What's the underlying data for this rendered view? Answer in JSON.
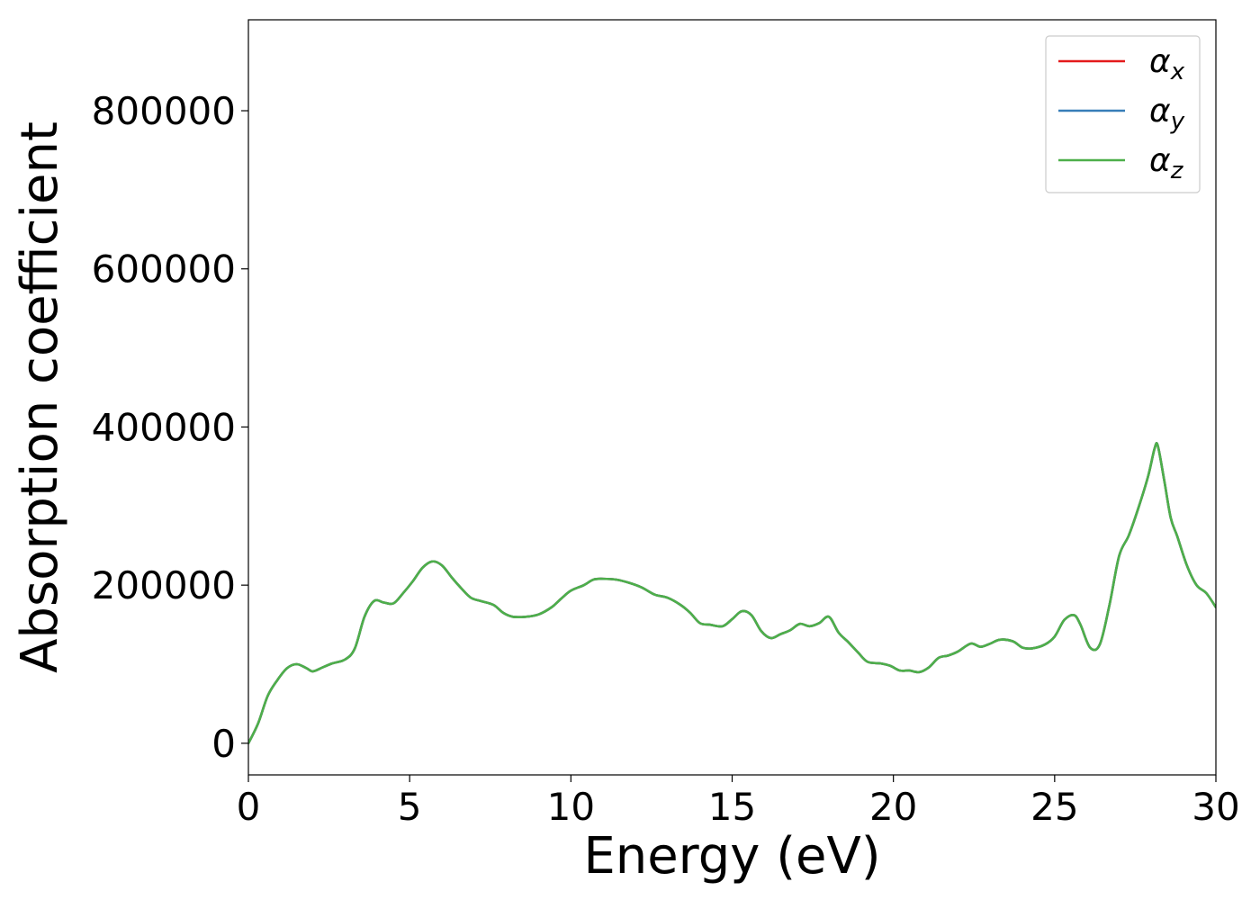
{
  "chart_data": {
    "type": "line",
    "title": "",
    "xlabel": "Energy (eV)",
    "ylabel": "Absorption coefficient",
    "xlim": [
      0,
      30
    ],
    "ylim": [
      -40000,
      915000
    ],
    "xticks": [
      0,
      5,
      10,
      15,
      20,
      25,
      30
    ],
    "yticks": [
      0,
      200000,
      400000,
      600000,
      800000
    ],
    "grid": false,
    "legend_position": "top-right",
    "series": [
      {
        "name": "αx",
        "name_base": "α",
        "name_sub": "x",
        "color": "#e41a1c",
        "x": [
          0,
          0.3,
          0.6,
          0.9,
          1.2,
          1.5,
          1.8,
          2.0,
          2.3,
          2.6,
          3.0,
          3.3,
          3.6,
          3.9,
          4.2,
          4.5,
          4.8,
          5.1,
          5.4,
          5.7,
          6.0,
          6.3,
          6.6,
          6.9,
          7.2,
          7.6,
          7.9,
          8.2,
          8.6,
          9.0,
          9.4,
          9.7,
          10.0,
          10.4,
          10.7,
          11.0,
          11.4,
          11.8,
          12.2,
          12.6,
          13.0,
          13.4,
          13.7,
          14.0,
          14.3,
          14.7,
          15.0,
          15.3,
          15.6,
          15.9,
          16.2,
          16.5,
          16.8,
          17.1,
          17.4,
          17.7,
          18.0,
          18.3,
          18.6,
          18.9,
          19.2,
          19.6,
          19.9,
          20.2,
          20.5,
          20.8,
          21.1,
          21.4,
          21.7,
          22.0,
          22.4,
          22.7,
          23.0,
          23.3,
          23.7,
          24.0,
          24.3,
          24.7,
          25.0,
          25.3,
          25.6,
          25.8,
          26.1,
          26.4,
          26.7,
          27.0,
          27.3,
          27.6,
          27.9,
          28.1,
          28.2,
          28.4,
          28.6,
          28.8,
          29.1,
          29.4,
          29.7,
          30.0
        ],
        "values": [
          0,
          25000,
          60000,
          80000,
          95000,
          100000,
          95000,
          91000,
          96000,
          101000,
          106000,
          120000,
          160000,
          180000,
          178000,
          177000,
          190000,
          205000,
          222000,
          230000,
          225000,
          210000,
          196000,
          184000,
          180000,
          175000,
          165000,
          160000,
          160000,
          163000,
          172000,
          183000,
          193000,
          200000,
          207000,
          208000,
          207000,
          203000,
          197000,
          188000,
          184000,
          175000,
          165000,
          152000,
          150000,
          148000,
          157000,
          167000,
          162000,
          142000,
          133000,
          138000,
          143000,
          151000,
          148000,
          152000,
          160000,
          140000,
          128000,
          115000,
          103000,
          101000,
          98000,
          92000,
          92000,
          90000,
          96000,
          108000,
          111000,
          116000,
          126000,
          122000,
          126000,
          131000,
          129000,
          121000,
          120000,
          125000,
          135000,
          156000,
          162000,
          150000,
          121000,
          125000,
          175000,
          237000,
          263000,
          298000,
          338000,
          373000,
          376000,
          332000,
          285000,
          262000,
          225000,
          200000,
          190000,
          172000
        ]
      },
      {
        "name": "αy",
        "name_base": "α",
        "name_sub": "y",
        "color": "#377eb8",
        "x": [
          0,
          0.3,
          0.6,
          0.9,
          1.2,
          1.5,
          1.8,
          2.0,
          2.3,
          2.6,
          3.0,
          3.3,
          3.6,
          3.9,
          4.2,
          4.5,
          4.8,
          5.1,
          5.4,
          5.7,
          6.0,
          6.3,
          6.6,
          6.9,
          7.2,
          7.6,
          7.9,
          8.2,
          8.6,
          9.0,
          9.4,
          9.7,
          10.0,
          10.4,
          10.7,
          11.0,
          11.4,
          11.8,
          12.2,
          12.6,
          13.0,
          13.4,
          13.7,
          14.0,
          14.3,
          14.7,
          15.0,
          15.3,
          15.6,
          15.9,
          16.2,
          16.5,
          16.8,
          17.1,
          17.4,
          17.7,
          18.0,
          18.3,
          18.6,
          18.9,
          19.2,
          19.6,
          19.9,
          20.2,
          20.5,
          20.8,
          21.1,
          21.4,
          21.7,
          22.0,
          22.4,
          22.7,
          23.0,
          23.3,
          23.7,
          24.0,
          24.3,
          24.7,
          25.0,
          25.3,
          25.6,
          25.8,
          26.1,
          26.4,
          26.7,
          27.0,
          27.3,
          27.6,
          27.9,
          28.1,
          28.2,
          28.4,
          28.6,
          28.8,
          29.1,
          29.4,
          29.7,
          30.0
        ],
        "values": [
          0,
          25000,
          60000,
          80000,
          95000,
          100000,
          95000,
          91000,
          96000,
          101000,
          106000,
          120000,
          160000,
          180000,
          178000,
          177000,
          190000,
          205000,
          222000,
          230000,
          225000,
          210000,
          196000,
          184000,
          180000,
          175000,
          165000,
          160000,
          160000,
          163000,
          172000,
          183000,
          193000,
          200000,
          207000,
          208000,
          207000,
          203000,
          197000,
          188000,
          184000,
          175000,
          165000,
          152000,
          150000,
          148000,
          157000,
          167000,
          162000,
          142000,
          133000,
          138000,
          143000,
          151000,
          148000,
          152000,
          160000,
          140000,
          128000,
          115000,
          103000,
          101000,
          98000,
          92000,
          92000,
          90000,
          96000,
          108000,
          111000,
          116000,
          126000,
          122000,
          126000,
          131000,
          129000,
          121000,
          120000,
          125000,
          135000,
          156000,
          162000,
          150000,
          121000,
          125000,
          175000,
          237000,
          263000,
          298000,
          338000,
          373000,
          376000,
          332000,
          285000,
          262000,
          225000,
          200000,
          190000,
          172000
        ]
      },
      {
        "name": "αz",
        "name_base": "α",
        "name_sub": "z",
        "color": "#4daf4a",
        "x": [
          0,
          0.3,
          0.6,
          0.9,
          1.2,
          1.5,
          1.8,
          2.0,
          2.3,
          2.6,
          3.0,
          3.3,
          3.6,
          3.9,
          4.2,
          4.5,
          4.8,
          5.1,
          5.4,
          5.7,
          6.0,
          6.3,
          6.6,
          6.9,
          7.2,
          7.6,
          7.9,
          8.2,
          8.6,
          9.0,
          9.4,
          9.7,
          10.0,
          10.4,
          10.7,
          11.0,
          11.4,
          11.8,
          12.2,
          12.6,
          13.0,
          13.4,
          13.7,
          14.0,
          14.3,
          14.7,
          15.0,
          15.3,
          15.6,
          15.9,
          16.2,
          16.5,
          16.8,
          17.1,
          17.4,
          17.7,
          18.0,
          18.3,
          18.6,
          18.9,
          19.2,
          19.6,
          19.9,
          20.2,
          20.5,
          20.8,
          21.1,
          21.4,
          21.7,
          22.0,
          22.4,
          22.7,
          23.0,
          23.3,
          23.7,
          24.0,
          24.3,
          24.7,
          25.0,
          25.3,
          25.6,
          25.8,
          26.1,
          26.4,
          26.7,
          27.0,
          27.3,
          27.6,
          27.9,
          28.1,
          28.2,
          28.4,
          28.6,
          28.8,
          29.1,
          29.4,
          29.7,
          30.0
        ],
        "values": [
          0,
          25000,
          60000,
          80000,
          95000,
          100000,
          95000,
          91000,
          96000,
          101000,
          106000,
          120000,
          160000,
          180000,
          178000,
          177000,
          190000,
          205000,
          222000,
          230000,
          225000,
          210000,
          196000,
          184000,
          180000,
          175000,
          165000,
          160000,
          160000,
          163000,
          172000,
          183000,
          193000,
          200000,
          207000,
          208000,
          207000,
          203000,
          197000,
          188000,
          184000,
          175000,
          165000,
          152000,
          150000,
          148000,
          157000,
          167000,
          162000,
          142000,
          133000,
          138000,
          143000,
          151000,
          148000,
          152000,
          160000,
          140000,
          128000,
          115000,
          103000,
          101000,
          98000,
          92000,
          92000,
          90000,
          96000,
          108000,
          111000,
          116000,
          126000,
          122000,
          126000,
          131000,
          129000,
          121000,
          120000,
          125000,
          135000,
          156000,
          162000,
          150000,
          121000,
          125000,
          175000,
          237000,
          263000,
          298000,
          338000,
          373000,
          376000,
          332000,
          285000,
          262000,
          225000,
          200000,
          190000,
          172000
        ]
      }
    ]
  }
}
